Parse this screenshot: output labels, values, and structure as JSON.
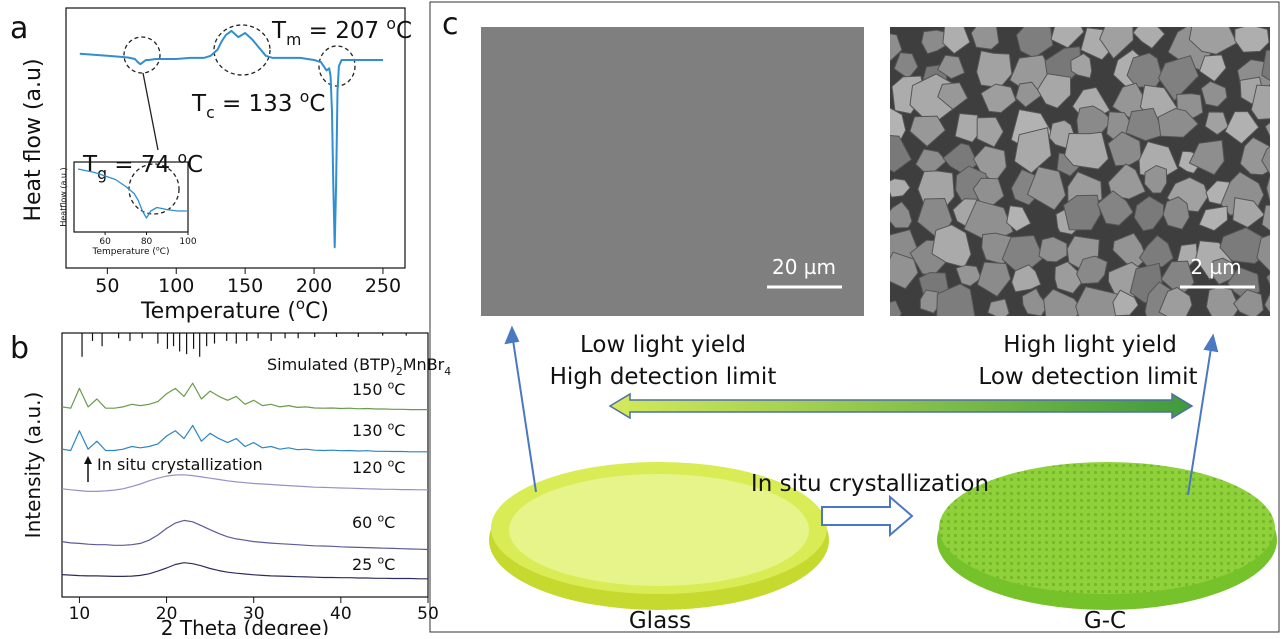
{
  "chart_data": [
    {
      "type": "line",
      "panel_label": "a",
      "xlabel": [
        {
          "t": "Temperature ("
        },
        {
          "sup": "o"
        },
        {
          "t": "C)"
        }
      ],
      "ylabel": "Heat flow (a.u)",
      "xlim": [
        20,
        266
      ],
      "xticks": [
        50,
        100,
        150,
        200,
        250
      ],
      "ylim": [
        -10,
        2.5
      ],
      "series": [
        {
          "color": "#2f8fd0",
          "x": [
            30,
            40,
            50,
            60,
            65,
            70,
            72,
            74,
            76,
            78,
            80,
            85,
            90,
            100,
            110,
            120,
            125,
            130,
            133,
            136,
            140,
            145,
            150,
            155,
            160,
            165,
            170,
            180,
            190,
            200,
            205,
            207,
            209,
            211,
            212,
            213,
            214,
            215,
            216,
            217,
            218,
            220,
            225,
            230,
            240,
            250
          ],
          "values": [
            0.3,
            0.25,
            0.2,
            0.15,
            0.12,
            0.05,
            -0.1,
            -0.2,
            -0.1,
            0,
            0,
            0.05,
            0.05,
            0.05,
            0.1,
            0.1,
            0.2,
            0.5,
            0.9,
            1.2,
            1.4,
            1.1,
            1.3,
            1.0,
            0.6,
            0.2,
            0.1,
            0.1,
            0.1,
            0.0,
            -0.1,
            -0.3,
            -0.5,
            -0.4,
            -0.8,
            -2.5,
            -6,
            -9,
            -6,
            -1.5,
            -0.3,
            0,
            0,
            0,
            0,
            0
          ]
        }
      ],
      "annotations": [
        [
          {
            "t": "T"
          },
          {
            "sub": "m"
          },
          {
            "t": " = 207 "
          },
          {
            "sup": "o"
          },
          {
            "t": "C"
          }
        ],
        [
          {
            "t": "T"
          },
          {
            "sub": "c"
          },
          {
            "t": " = 133 "
          },
          {
            "sup": "o"
          },
          {
            "t": "C"
          }
        ],
        [
          {
            "t": "T"
          },
          {
            "sub": "g"
          },
          {
            "t": " = 74 "
          },
          {
            "sup": "o"
          },
          {
            "t": "C"
          }
        ]
      ]
    },
    {
      "type": "line",
      "xlabel": [
        {
          "t": "Temperature ("
        },
        {
          "sup": "o"
        },
        {
          "t": "C)"
        }
      ],
      "ylabel": "Heatflow (a.u.)",
      "xlim": [
        45,
        100
      ],
      "xticks": [
        60,
        80,
        100
      ],
      "ylim": [
        0,
        10
      ],
      "series": [
        {
          "color": "#2f8fd0",
          "x": [
            47,
            55,
            60,
            65,
            70,
            74,
            76,
            78,
            80,
            82,
            85,
            90,
            95,
            100
          ],
          "values": [
            9,
            8.5,
            8,
            7.5,
            6.5,
            5.5,
            4.5,
            3,
            2,
            3,
            3.5,
            3.2,
            3,
            3
          ]
        }
      ]
    },
    {
      "type": "line",
      "panel_label": "b",
      "xlabel": "2 Theta (degree)",
      "ylabel": "Intensity (a.u.)",
      "xlim": [
        8,
        50
      ],
      "xticks": [
        10,
        20,
        30,
        40,
        50
      ],
      "ylim": [
        0,
        100
      ],
      "x": [
        8,
        9,
        10,
        11,
        12,
        13,
        14,
        15,
        16,
        17,
        18,
        19,
        20,
        21,
        22,
        23,
        24,
        25,
        26,
        27,
        28,
        29,
        30,
        31,
        32,
        33,
        34,
        35,
        36,
        37,
        38,
        39,
        40,
        41,
        42,
        43,
        44,
        45,
        46,
        47,
        48,
        49,
        50
      ],
      "series": [
        {
          "name": [
            {
              "t": "Simulated (BTP)"
            },
            {
              "sub": "2"
            },
            {
              "t": "MnBr"
            },
            {
              "sub": "4"
            }
          ],
          "style": "stick",
          "color": "#111111",
          "x": [
            10.3,
            11.5,
            12.6,
            14.5,
            15.8,
            17.2,
            19,
            20.1,
            20.8,
            21.5,
            22.3,
            23.1,
            23.8,
            24.6,
            25.5,
            26.9,
            28,
            29.2,
            30.5,
            32,
            33.6,
            35.1,
            37,
            39.5,
            42,
            44.8,
            47.5
          ],
          "values": [
            9,
            3,
            5,
            2,
            3,
            2,
            4,
            6,
            5,
            7,
            8,
            6,
            9,
            5,
            4,
            3,
            4,
            3,
            2,
            3,
            2,
            2,
            1.5,
            1.5,
            1.5,
            1,
            1
          ]
        },
        {
          "name": [
            {
              "t": "150 "
            },
            {
              "sup": "o"
            },
            {
              "t": "C"
            }
          ],
          "color": "#6b9a4c",
          "values": [
            72,
            71.5,
            79,
            72,
            75,
            71.5,
            71.5,
            72,
            73,
            72.5,
            73,
            74,
            77,
            79,
            76,
            81,
            75,
            78,
            76,
            74.5,
            76,
            73,
            74.5,
            72.5,
            73,
            72,
            72.5,
            71.8,
            72,
            71.6,
            71.5,
            71.6,
            71.4,
            71.5,
            71.3,
            71.4,
            71.2,
            71.2,
            71.1,
            71.1,
            71,
            71,
            71
          ]
        },
        {
          "name": [
            {
              "t": "130 "
            },
            {
              "sup": "o"
            },
            {
              "t": "C"
            }
          ],
          "color": "#2e86c1",
          "values": [
            56,
            55.5,
            63,
            56,
            59,
            55.5,
            55.5,
            56,
            57,
            56.5,
            57,
            58,
            61,
            63,
            60,
            65,
            59,
            62,
            60,
            58.5,
            60,
            57,
            58.5,
            56.5,
            57,
            56,
            56.5,
            55.8,
            56,
            55.6,
            55.5,
            55.6,
            55.4,
            55.5,
            55.3,
            55.4,
            55.2,
            55.2,
            55.1,
            55.1,
            55,
            55,
            55
          ]
        },
        {
          "name": [
            {
              "t": "120 "
            },
            {
              "sup": "o"
            },
            {
              "t": "C"
            }
          ],
          "color": "#9b8fc8",
          "values": [
            41,
            40.6,
            40.3,
            40,
            40,
            40.2,
            40.5,
            41,
            41.8,
            42.8,
            44,
            45,
            45.8,
            46.2,
            46.3,
            46,
            45.5,
            45,
            44.5,
            44,
            43.6,
            43.3,
            43,
            42.8,
            42.6,
            42.4,
            42.2,
            42,
            41.8,
            41.6,
            41.5,
            41.4,
            41.3,
            41.2,
            41.1,
            41,
            40.9,
            40.8,
            40.8,
            40.7,
            40.7,
            40.6,
            40.6
          ]
        },
        {
          "name": [
            {
              "t": "60 "
            },
            {
              "sup": "o"
            },
            {
              "t": "C"
            }
          ],
          "color": "#5c5a9a",
          "values": [
            21,
            20.5,
            20.3,
            20,
            19.8,
            19.8,
            19.6,
            19.6,
            19.8,
            20.3,
            21.5,
            23.5,
            26,
            28,
            29,
            28.5,
            27,
            25.5,
            24,
            22.8,
            22,
            21.5,
            21,
            20.7,
            20.4,
            20.2,
            20,
            19.8,
            19.6,
            19.4,
            19.3,
            19.2,
            19,
            18.9,
            18.8,
            18.7,
            18.6,
            18.5,
            18.4,
            18.3,
            18.2,
            18.1,
            18
          ]
        },
        {
          "name": [
            {
              "t": "25 "
            },
            {
              "sup": "o"
            },
            {
              "t": "C"
            }
          ],
          "color": "#2e2e5e",
          "values": [
            8.5,
            8.3,
            8.1,
            8,
            8,
            7.9,
            7.8,
            7.8,
            7.9,
            8.2,
            8.8,
            9.8,
            11,
            12.3,
            13,
            12.6,
            11.8,
            10.8,
            10,
            9.4,
            9,
            8.7,
            8.4,
            8.2,
            8,
            7.9,
            7.8,
            7.7,
            7.6,
            7.5,
            7.4,
            7.4,
            7.3,
            7.3,
            7.2,
            7.2,
            7.1,
            7.1,
            7,
            7,
            7,
            6.9,
            6.9
          ]
        }
      ],
      "annotations": [
        [
          {
            "t": "In situ crystallization"
          }
        ]
      ]
    }
  ],
  "diagram": {
    "panel_label": "c",
    "scale_bars": [
      "20 µm",
      "2 µm"
    ],
    "left_text": [
      "Low light yield",
      "High detection limit"
    ],
    "right_text": [
      "High light yield",
      "Low detection limit"
    ],
    "process": "In situ crystallization",
    "samples": [
      "Glass",
      "G-C"
    ]
  }
}
